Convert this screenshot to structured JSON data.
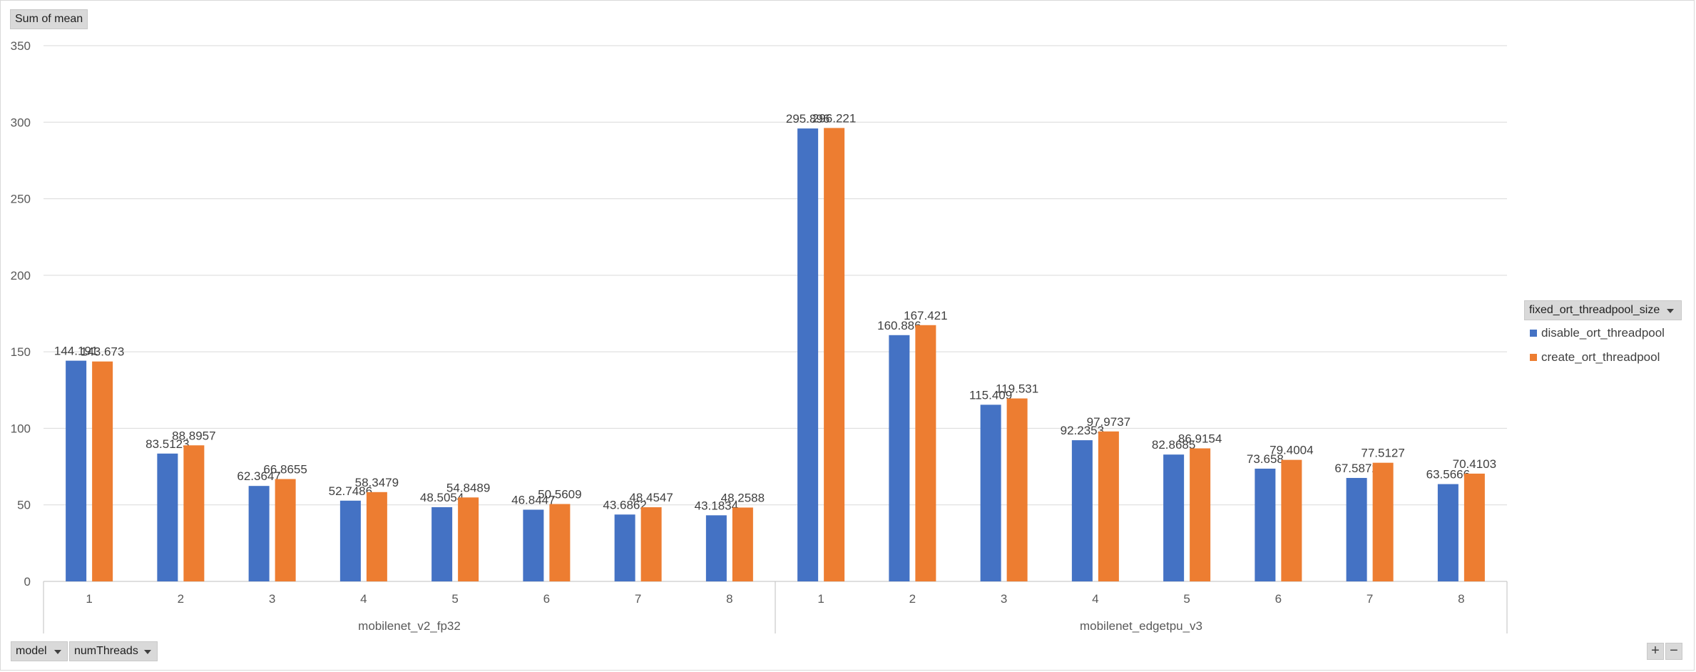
{
  "value_field_button": "Sum of mean",
  "legend": {
    "header": "fixed_ort_threadpool_size",
    "items": [
      {
        "label": "disable_ort_threadpool",
        "color": "#4472C4"
      },
      {
        "label": "create_ort_threadpool",
        "color": "#ED7D31"
      }
    ]
  },
  "axis_field_buttons": [
    {
      "label": "model"
    },
    {
      "label": "numThreads"
    }
  ],
  "zoom": {
    "plus": "+",
    "minus": "−"
  },
  "chart_data": {
    "type": "bar",
    "ylim": [
      0,
      350
    ],
    "yticks": [
      0,
      50,
      100,
      150,
      200,
      250,
      300,
      350
    ],
    "grid": true,
    "legend_position": "right",
    "groups": [
      {
        "name": "mobilenet_v2_fp32",
        "categories": [
          "1",
          "2",
          "3",
          "4",
          "5",
          "6",
          "7",
          "8"
        ],
        "series": [
          {
            "name": "disable_ort_threadpool",
            "values": [
              144.191,
              83.5123,
              62.3647,
              52.7486,
              48.5054,
              46.8447,
              43.6862,
              43.1834
            ],
            "labels": [
              "144.191",
              "83.5123",
              "62.3647",
              "52.7486",
              "48.5054",
              "46.8447",
              "43.6862",
              "43.1834"
            ]
          },
          {
            "name": "create_ort_threadpool",
            "values": [
              143.673,
              88.8957,
              66.8655,
              58.3479,
              54.8489,
              50.5609,
              48.4547,
              48.2588
            ],
            "labels": [
              "143.673",
              "88.8957",
              "66.8655",
              "58.3479",
              "54.8489",
              "50.5609",
              "48.4547",
              "48.2588"
            ]
          }
        ]
      },
      {
        "name": "mobilenet_edgetpu_v3",
        "categories": [
          "1",
          "2",
          "3",
          "4",
          "5",
          "6",
          "7",
          "8"
        ],
        "series": [
          {
            "name": "disable_ort_threadpool",
            "values": [
              295.896,
              160.886,
              115.409,
              92.2353,
              82.8685,
              73.658,
              67.5872,
              63.5666
            ],
            "labels": [
              "295.896",
              "160.886",
              "115.409",
              "92.2353",
              "82.8685",
              "73.658",
              "67.5872",
              "63.5666"
            ]
          },
          {
            "name": "create_ort_threadpool",
            "values": [
              296.221,
              167.421,
              119.531,
              97.9737,
              86.9154,
              79.4004,
              77.5127,
              70.4103
            ],
            "labels": [
              "296.221",
              "167.421",
              "119.531",
              "97.9737",
              "86.9154",
              "79.4004",
              "77.5127",
              "70.4103"
            ]
          }
        ]
      }
    ]
  }
}
